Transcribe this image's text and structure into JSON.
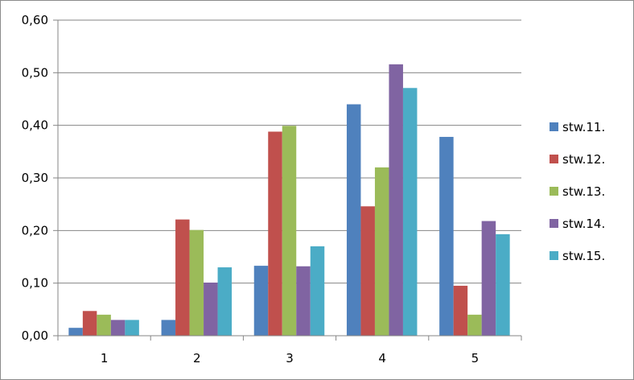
{
  "chart_data": {
    "type": "bar",
    "title": "",
    "xlabel": "",
    "ylabel": "",
    "categories": [
      "1",
      "2",
      "3",
      "4",
      "5"
    ],
    "ylim": [
      0,
      0.6
    ],
    "yticks": [
      "0,00",
      "0,10",
      "0,20",
      "0,30",
      "0,40",
      "0,50",
      "0,60"
    ],
    "grid": true,
    "legend_position": "right",
    "series": [
      {
        "name": "stw.11.",
        "color": "#4f81bd",
        "values": [
          0.015,
          0.03,
          0.133,
          0.44,
          0.378
        ]
      },
      {
        "name": "stw.12.",
        "color": "#c0504d",
        "values": [
          0.047,
          0.221,
          0.388,
          0.246,
          0.095
        ]
      },
      {
        "name": "stw.13.",
        "color": "#9bbb59",
        "values": [
          0.04,
          0.201,
          0.399,
          0.32,
          0.04
        ]
      },
      {
        "name": "stw.14.",
        "color": "#8064a2",
        "values": [
          0.03,
          0.101,
          0.132,
          0.516,
          0.218
        ]
      },
      {
        "name": "stw.15.",
        "color": "#4bacc6",
        "values": [
          0.03,
          0.13,
          0.17,
          0.471,
          0.193
        ]
      }
    ]
  }
}
